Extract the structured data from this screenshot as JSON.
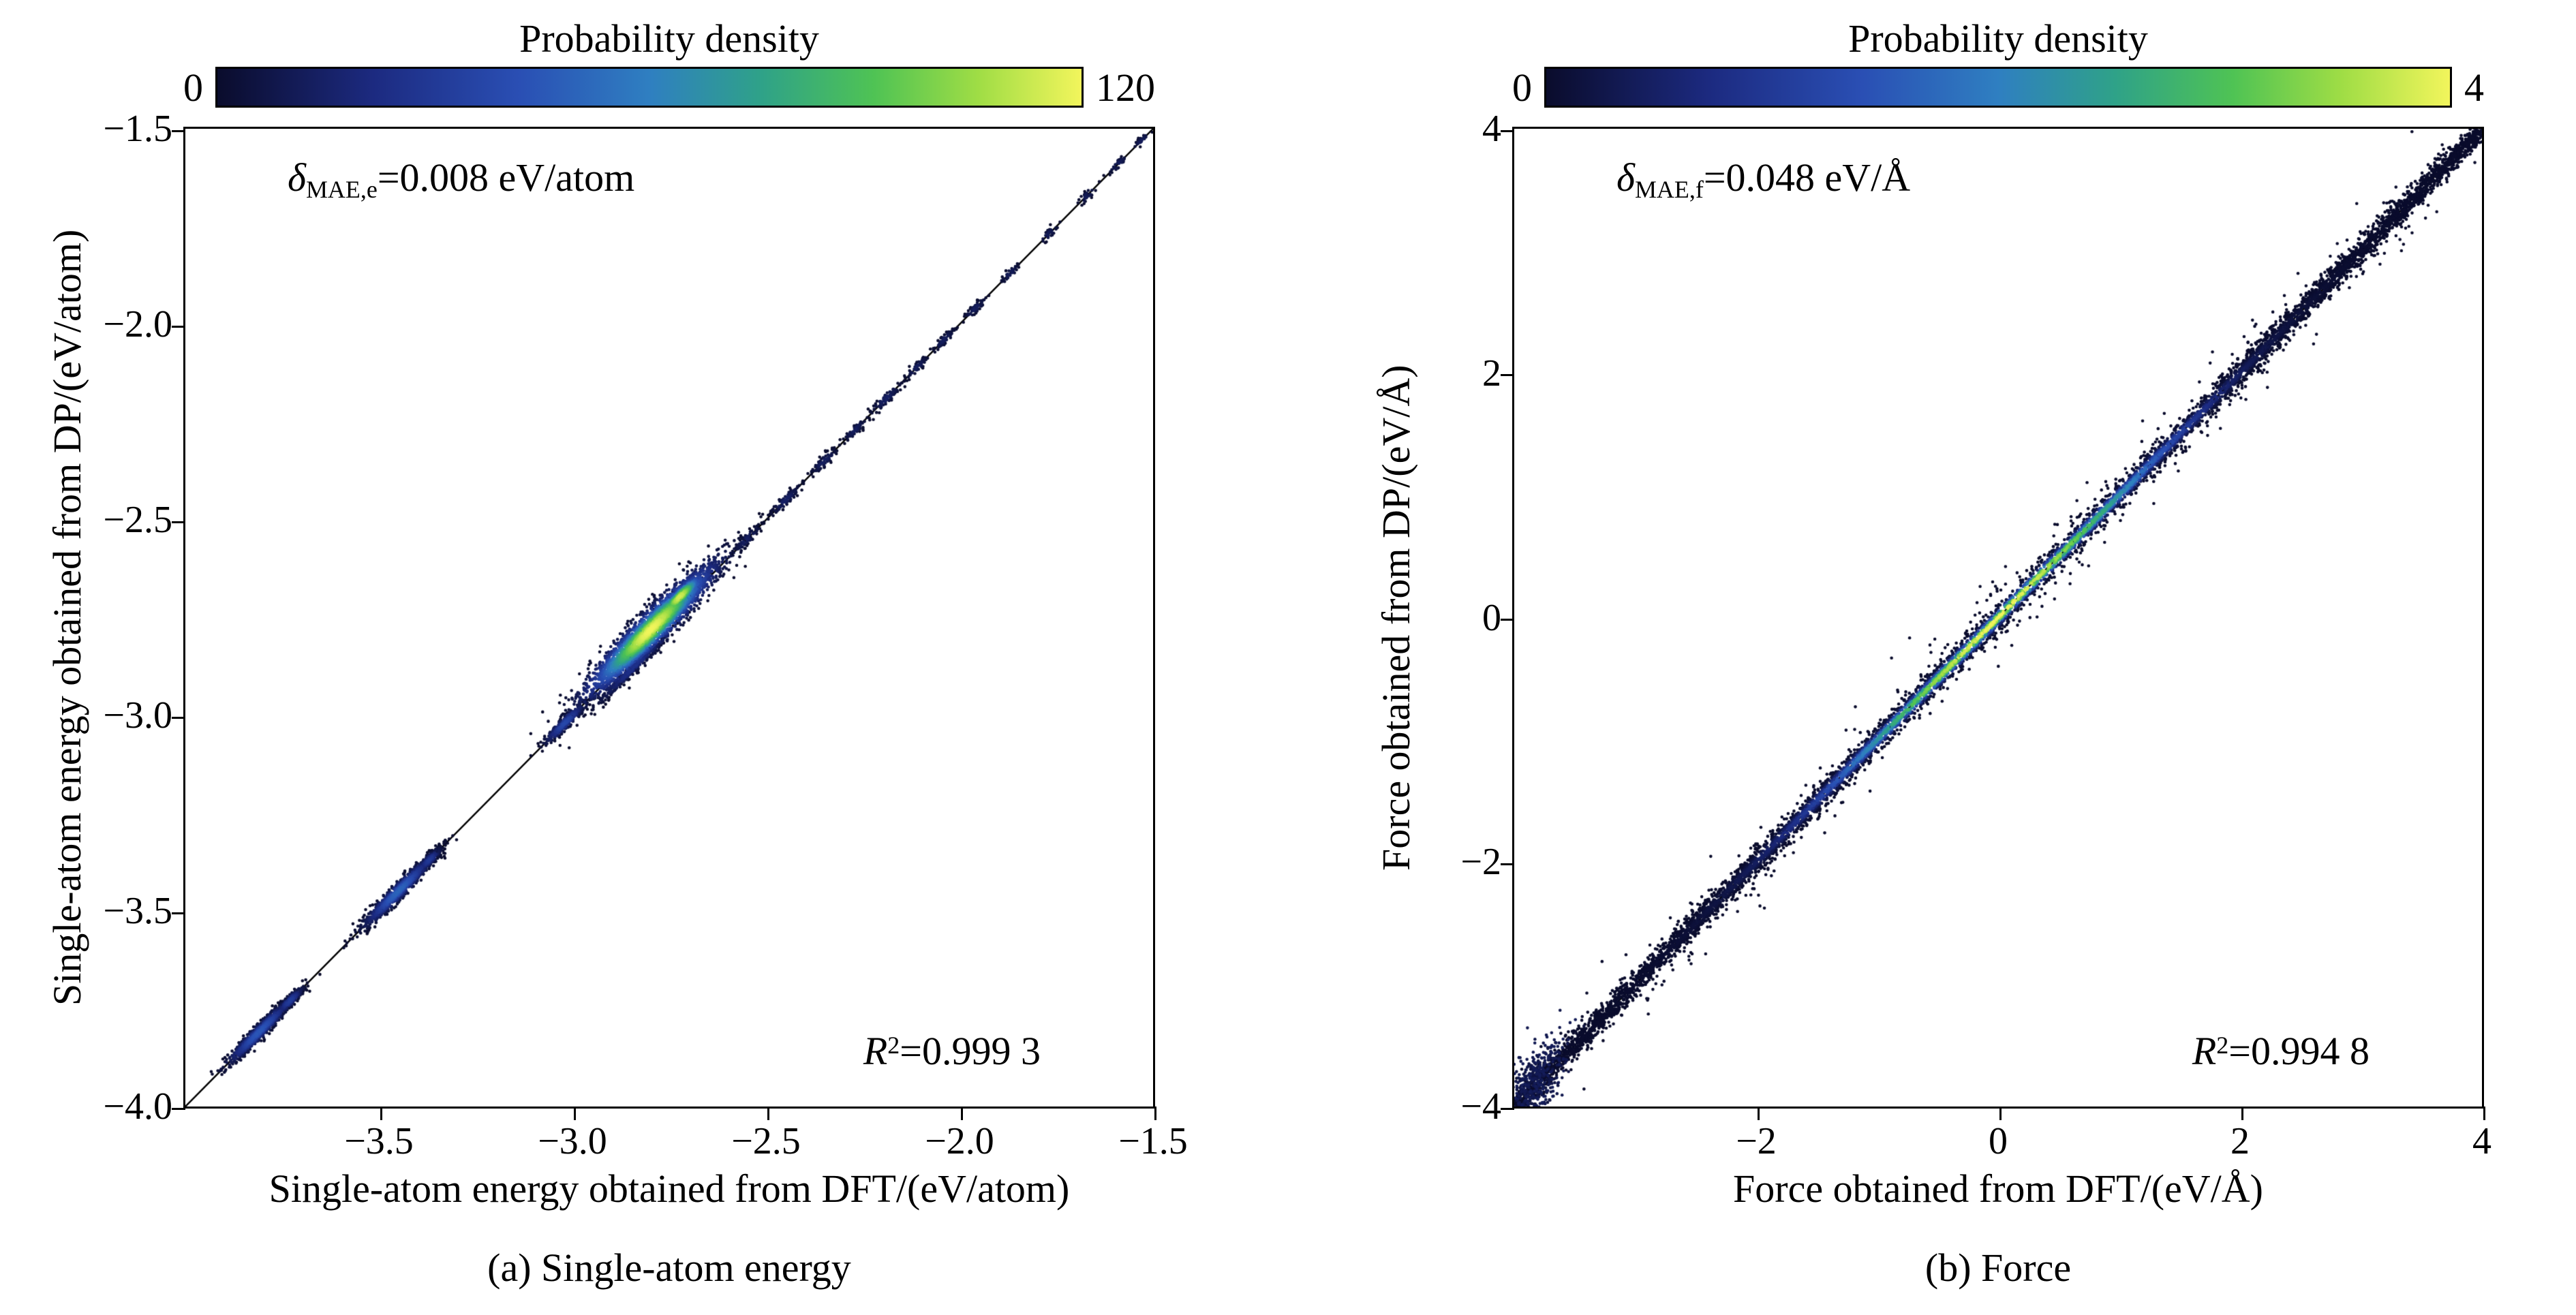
{
  "colormap": {
    "stops": [
      {
        "p": 0.0,
        "c": "#0a0c2c"
      },
      {
        "p": 0.18,
        "c": "#1c2a80"
      },
      {
        "p": 0.35,
        "c": "#2a4fb4"
      },
      {
        "p": 0.5,
        "c": "#2f7fc1"
      },
      {
        "p": 0.63,
        "c": "#2fa288"
      },
      {
        "p": 0.76,
        "c": "#4fc354"
      },
      {
        "p": 0.88,
        "c": "#9fdd45"
      },
      {
        "p": 1.0,
        "c": "#f2f55c"
      }
    ]
  },
  "chart_data": [
    {
      "type": "scatter",
      "subtype": "density-scatter",
      "seed": 42,
      "caption": "(a) Single-atom energy",
      "xlabel": "Single-atom energy obtained from DFT/(eV/atom)",
      "ylabel": "Single-atom energy obtained from DP/(eV/atom)",
      "xlim": [
        -4.0,
        -1.5
      ],
      "ylim": [
        -4.0,
        -1.5
      ],
      "xticks": [
        {
          "v": -3.5,
          "label": "−3.5"
        },
        {
          "v": -3.0,
          "label": "−3.0"
        },
        {
          "v": -2.5,
          "label": "−2.5"
        },
        {
          "v": -2.0,
          "label": "−2.0"
        },
        {
          "v": -1.5,
          "label": "−1.5"
        }
      ],
      "yticks": [
        {
          "v": -1.5,
          "label": "−1.5"
        },
        {
          "v": -2.0,
          "label": "−2.0"
        },
        {
          "v": -2.5,
          "label": "−2.5"
        },
        {
          "v": -3.0,
          "label": "−3.0"
        },
        {
          "v": -3.5,
          "label": "−3.5"
        },
        {
          "v": -4.0,
          "label": "−4.0"
        }
      ],
      "colorbar": {
        "title": "Probability density",
        "min": 0,
        "max": 120,
        "min_label": "0",
        "max_label": "120"
      },
      "annotation": {
        "symbol": "δ",
        "sub": "MAE,e",
        "rest": "=0.008 eV/atom"
      },
      "r_squared": {
        "base": "R",
        "sup": "2",
        "rest": "=0.999 3"
      },
      "identity_line": true,
      "clusters": [
        {
          "t": -3.81,
          "sx": 0.045,
          "sp": 0.008,
          "n": 700,
          "peak": 45
        },
        {
          "t": -3.73,
          "sx": 0.018,
          "sp": 0.006,
          "n": 220,
          "peak": 32
        },
        {
          "t": -3.45,
          "sx": 0.048,
          "sp": 0.009,
          "n": 800,
          "peak": 50
        },
        {
          "t": -3.37,
          "sx": 0.016,
          "sp": 0.006,
          "n": 200,
          "peak": 30
        },
        {
          "t": -3.02,
          "sx": 0.028,
          "sp": 0.007,
          "n": 260,
          "peak": 38
        },
        {
          "t": -2.79,
          "sx": 0.085,
          "sp": 0.02,
          "n": 2600,
          "peak": 120,
          "off": 0.012
        },
        {
          "t": -2.71,
          "sx": 0.03,
          "sp": 0.01,
          "n": 600,
          "peak": 115,
          "off": 0.018
        },
        {
          "t": -2.86,
          "sx": 0.05,
          "sp": 0.006,
          "n": 300,
          "peak": 25,
          "off": -0.025
        },
        {
          "t": -2.55,
          "sx": 0.02,
          "sp": 0.006,
          "n": 70,
          "peak": 14
        },
        {
          "t": -2.45,
          "sx": 0.02,
          "sp": 0.006,
          "n": 90,
          "peak": 15
        },
        {
          "t": -2.35,
          "sx": 0.018,
          "sp": 0.006,
          "n": 70,
          "peak": 14
        },
        {
          "t": -2.27,
          "sx": 0.015,
          "sp": 0.005,
          "n": 60,
          "peak": 13
        },
        {
          "t": -2.19,
          "sx": 0.02,
          "sp": 0.006,
          "n": 80,
          "peak": 15
        },
        {
          "t": -2.11,
          "sx": 0.015,
          "sp": 0.005,
          "n": 55,
          "peak": 13
        },
        {
          "t": -2.04,
          "sx": 0.015,
          "sp": 0.005,
          "n": 60,
          "peak": 13
        },
        {
          "t": -1.96,
          "sx": 0.015,
          "sp": 0.005,
          "n": 55,
          "peak": 13
        },
        {
          "t": -1.87,
          "sx": 0.012,
          "sp": 0.005,
          "n": 35,
          "peak": 12
        },
        {
          "t": -1.77,
          "sx": 0.012,
          "sp": 0.005,
          "n": 30,
          "peak": 12
        },
        {
          "t": -1.67,
          "sx": 0.012,
          "sp": 0.005,
          "n": 28,
          "peak": 12
        },
        {
          "t": -1.59,
          "sx": 0.012,
          "sp": 0.005,
          "n": 30,
          "peak": 12
        },
        {
          "t": -1.53,
          "sx": 0.01,
          "sp": 0.004,
          "n": 25,
          "peak": 12
        }
      ]
    },
    {
      "type": "scatter",
      "subtype": "density-scatter",
      "seed": 1234,
      "caption": "(b) Force",
      "xlabel": "Force obtained from DFT/(eV/Å)",
      "ylabel": "Force obtained from DP/(eV/Å)",
      "xlim": [
        -4,
        4
      ],
      "ylim": [
        -4,
        4
      ],
      "xticks": [
        {
          "v": -2,
          "label": "−2"
        },
        {
          "v": 0,
          "label": "0"
        },
        {
          "v": 2,
          "label": "2"
        },
        {
          "v": 4,
          "label": "4"
        }
      ],
      "yticks": [
        {
          "v": 4,
          "label": "4"
        },
        {
          "v": 2,
          "label": "2"
        },
        {
          "v": 0,
          "label": "0"
        },
        {
          "v": -2,
          "label": "−2"
        },
        {
          "v": -4,
          "label": "−4"
        }
      ],
      "colorbar": {
        "title": "Probability density",
        "min": 0,
        "max": 4,
        "min_label": "0",
        "max_label": "4"
      },
      "annotation": {
        "symbol": "δ",
        "sub": "MAE,f",
        "rest": "=0.048 eV/Å"
      },
      "r_squared": {
        "base": "R",
        "sup": "2",
        "rest": "=0.994 8"
      },
      "identity_line": true,
      "band": {
        "n": 8000,
        "p_sigma": 0.055,
        "outlier_frac": 0.1,
        "outlier_mult": 3.0,
        "core_x_sigma": 1.35,
        "core_p_sigma": 0.032
      },
      "corner_blob": {
        "x": -3.85,
        "sx": 0.12,
        "sp": 0.15,
        "n": 500
      }
    }
  ]
}
